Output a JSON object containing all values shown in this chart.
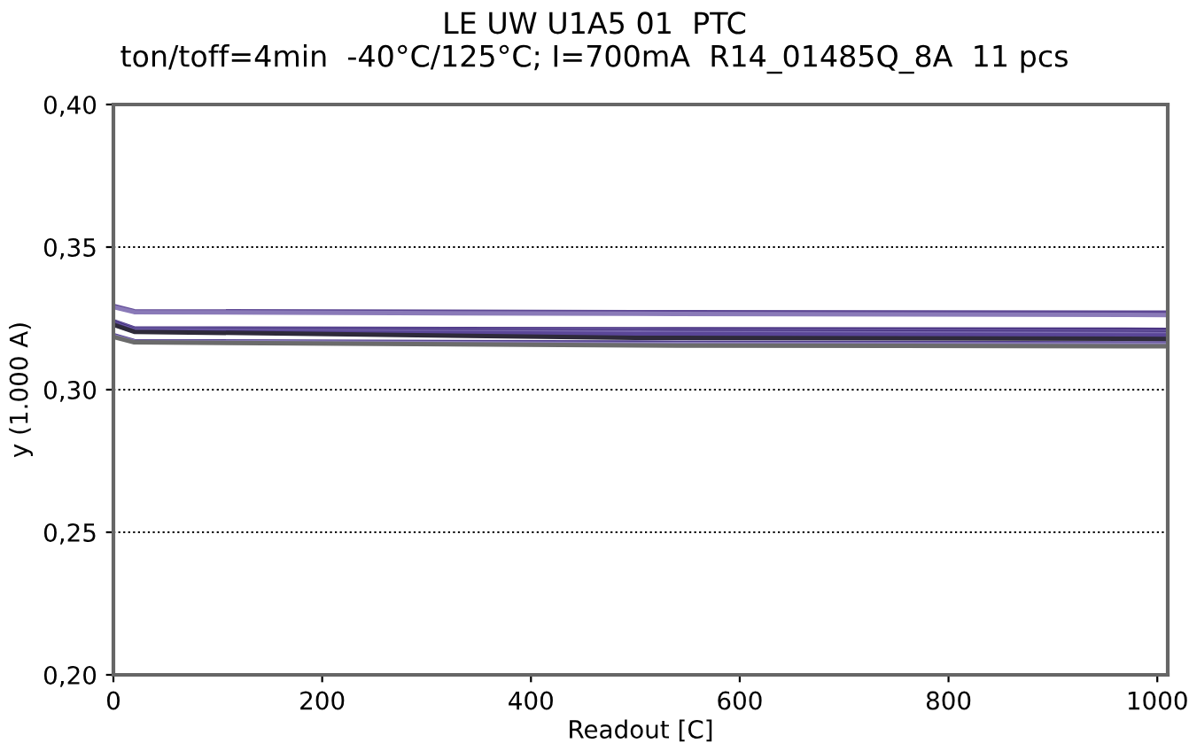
{
  "chart_data": {
    "type": "line",
    "title": "LE UW U1A5 01  PTC\nton/toff=4min  -40°C/125°C; I=700mA  R14_01485Q_8A  11 pcs",
    "xlabel": "Readout [C]",
    "ylabel": "y (1.000 A)",
    "xlim": [
      0,
      1010
    ],
    "xticks": [
      0,
      200,
      400,
      600,
      800,
      1000
    ],
    "ylim": [
      0.2,
      0.4
    ],
    "yticks": [
      {
        "value": 0.2,
        "label": "0,20"
      },
      {
        "value": 0.25,
        "label": "0,25"
      },
      {
        "value": 0.3,
        "label": "0,30"
      },
      {
        "value": 0.35,
        "label": "0,35"
      },
      {
        "value": 0.4,
        "label": "0,40"
      }
    ],
    "grid": "y",
    "marker": "none",
    "line_style": "solid",
    "series": [
      {
        "color": "#5c4693",
        "x": [
          0,
          20,
          500,
          1010
        ],
        "values": [
          0.3294,
          0.3275,
          0.3272,
          0.327
        ]
      },
      {
        "color": "#8a7ab8",
        "x": [
          0,
          20,
          500,
          1010
        ],
        "values": [
          0.329,
          0.3272,
          0.3266,
          0.3262
        ]
      },
      {
        "color": "#4b3583",
        "x": [
          0,
          20,
          500,
          1010
        ],
        "values": [
          0.324,
          0.3215,
          0.3212,
          0.321
        ]
      },
      {
        "color": "#6a58a3",
        "x": [
          0,
          20,
          500,
          1010
        ],
        "values": [
          0.3238,
          0.3213,
          0.3207,
          0.3203
        ]
      },
      {
        "color": "#3f2c78",
        "x": [
          0,
          20,
          500,
          1010
        ],
        "values": [
          0.3235,
          0.321,
          0.3203,
          0.3198
        ]
      },
      {
        "color": "#7d6db2",
        "x": [
          0,
          20,
          500,
          1010
        ],
        "values": [
          0.3232,
          0.3208,
          0.32,
          0.3195
        ]
      },
      {
        "color": "#5a4697",
        "x": [
          0,
          20,
          500,
          1010
        ],
        "values": [
          0.323,
          0.3205,
          0.3195,
          0.319
        ]
      },
      {
        "color": "#2e2a3a",
        "x": [
          0,
          20,
          500,
          1010
        ],
        "values": [
          0.3228,
          0.3203,
          0.3182,
          0.3178
        ]
      },
      {
        "color": "#4e3b8a",
        "x": [
          0,
          20,
          500,
          1010
        ],
        "values": [
          0.3191,
          0.317,
          0.3165,
          0.3162
        ]
      },
      {
        "color": "#8d80bc",
        "x": [
          0,
          20,
          500,
          1010
        ],
        "values": [
          0.3188,
          0.3168,
          0.316,
          0.3158
        ]
      },
      {
        "color": "#6b6b6b",
        "x": [
          0,
          20,
          500,
          1010
        ],
        "values": [
          0.3185,
          0.3166,
          0.3155,
          0.3152
        ]
      }
    ]
  }
}
